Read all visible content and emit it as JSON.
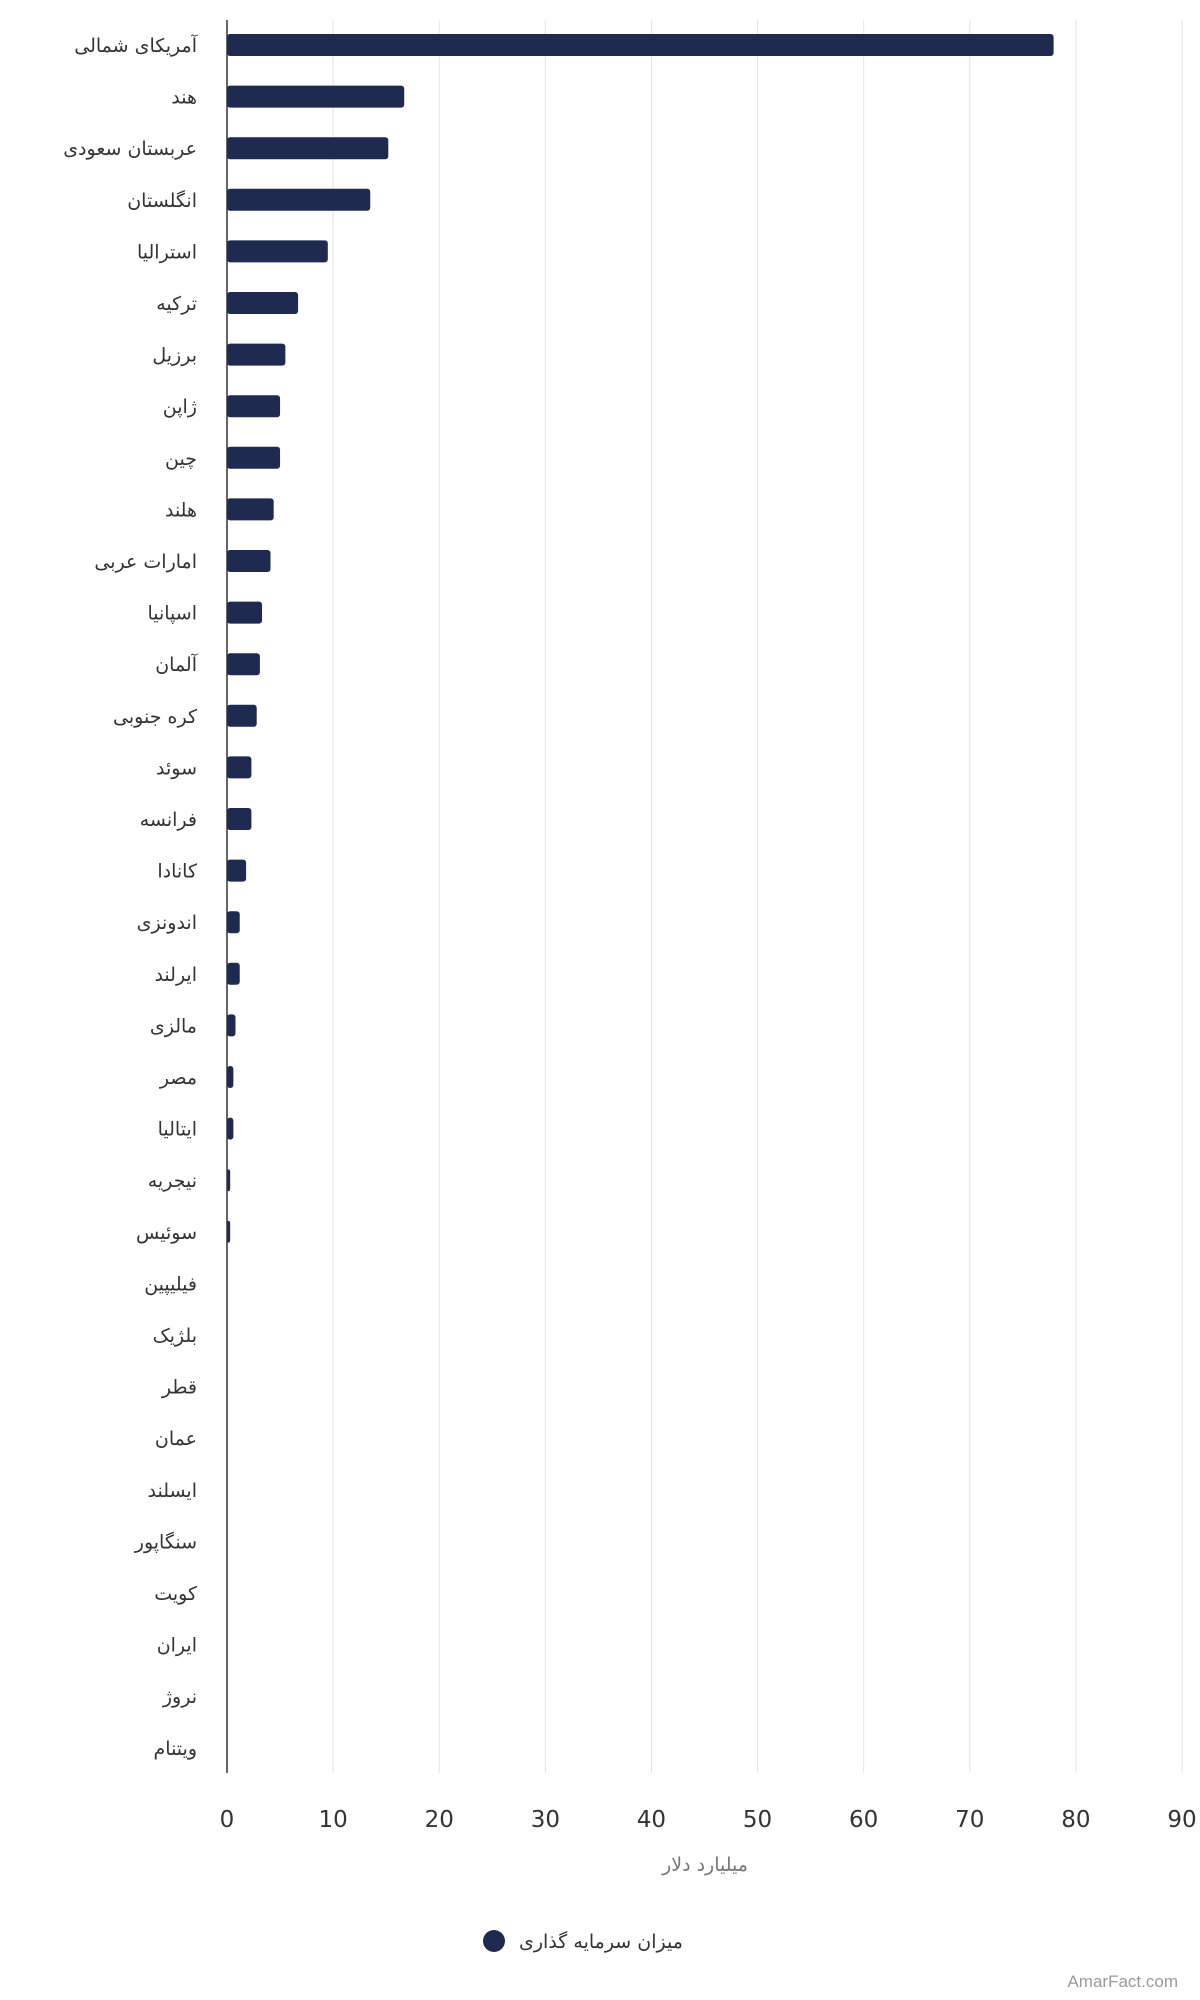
{
  "chart_data": {
    "type": "bar",
    "orientation": "horizontal",
    "categories": [
      "آمریکای شمالی",
      "هند",
      "عربستان سعودی",
      "انگلستان",
      "استرالیا",
      "ترکیه",
      "برزیل",
      "ژاپن",
      "چین",
      "هلند",
      "امارات عربی",
      "اسپانیا",
      "آلمان",
      "کره جنوبی",
      "سوئد",
      "فرانسه",
      "کانادا",
      "اندونزی",
      "ایرلند",
      "مالزی",
      "مصر",
      "ایتالیا",
      "نیجریه",
      "سوئیس",
      "فیلیپین",
      "بلژیک",
      "قطر",
      "عمان",
      "ایسلند",
      "سنگاپور",
      "کویت",
      "ایران",
      "نروژ",
      "ویتنام"
    ],
    "series": [
      {
        "name": "میزان سرمایه گذاری",
        "color": "#1e2a4f",
        "values": [
          77.9,
          16.7,
          15.2,
          13.5,
          9.5,
          6.7,
          5.5,
          5.0,
          5.0,
          4.4,
          4.1,
          3.3,
          3.1,
          2.8,
          2.3,
          2.3,
          1.8,
          1.2,
          1.2,
          0.8,
          0.6,
          0.6,
          0.3,
          0.3,
          0,
          0,
          0,
          0,
          0,
          0,
          0,
          0,
          0,
          0
        ]
      }
    ],
    "xlim": [
      0,
      90
    ],
    "xticks": [
      0,
      10,
      20,
      30,
      40,
      50,
      60,
      70,
      80,
      90
    ],
    "xlabel": "میلیارد دلار",
    "grid": true,
    "legend_position": "bottom"
  },
  "watermark": "AmarFact.com"
}
